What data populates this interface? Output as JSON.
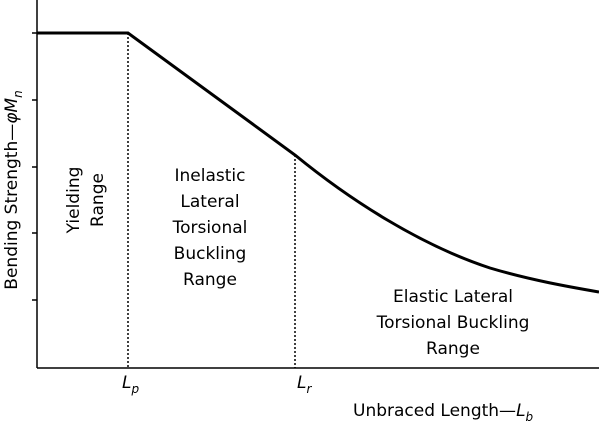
{
  "axes": {
    "y_label": {
      "text": "Bending Strength—",
      "symbol": "φM",
      "sub": "n"
    },
    "x_label": {
      "text": "Unbraced Length—",
      "symbol": "L",
      "sub": "b"
    }
  },
  "markers": [
    {
      "symbol": "L",
      "sub": "p"
    },
    {
      "symbol": "L",
      "sub": "r"
    }
  ],
  "regions": [
    {
      "lines": [
        "Yielding",
        "Range"
      ]
    },
    {
      "lines": [
        "Inelastic",
        "Lateral",
        "Torsional",
        "Buckling",
        "Range"
      ]
    },
    {
      "lines": [
        "Elastic Lateral",
        "Torsional Buckling",
        "Range"
      ]
    }
  ]
}
